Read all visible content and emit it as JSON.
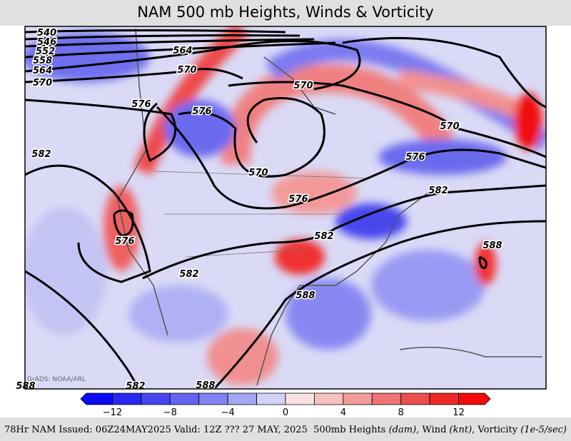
{
  "header": {
    "title": "NAM 500 mb Heights, Winds & Vorticity"
  },
  "map": {
    "contour_labels": [
      "540",
      "546",
      "552",
      "558",
      "564",
      "570",
      "564",
      "570",
      "576",
      "576",
      "570",
      "582",
      "570",
      "570",
      "576",
      "576",
      "582",
      "582",
      "576",
      "582",
      "588",
      "588",
      "588",
      "582",
      "588"
    ],
    "watermark": "GrADS: NOAA/ARL"
  },
  "colorbar": {
    "colors": [
      "#0a0af0",
      "#2828f0",
      "#4646ee",
      "#6464f0",
      "#8282f2",
      "#a5a5f5",
      "#d2d2fa",
      "#fbe2e2",
      "#f7c0c0",
      "#f39a9a",
      "#ef7474",
      "#eb4e4e",
      "#ef2828",
      "#f50a0a"
    ],
    "ticks": [
      "−12",
      "−8",
      "−4",
      "0",
      "4",
      "8",
      "12"
    ]
  },
  "footer": {
    "left": "78Hr NAM Issued: 06Z24MAY2025 Valid: 12Z ??? 27 MAY, 2025",
    "right": [
      "500mb Heights ",
      "(dam)",
      ", Wind ",
      "(knt)",
      ", Vorticity ",
      "(1e-5/sec)"
    ]
  }
}
